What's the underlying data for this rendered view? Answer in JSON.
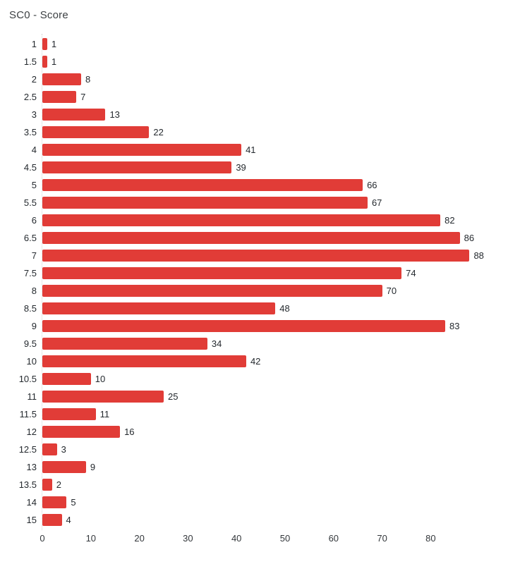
{
  "chart_data": {
    "type": "bar",
    "orientation": "horizontal",
    "title": "SC0 - Score",
    "categories": [
      "1",
      "1.5",
      "2",
      "2.5",
      "3",
      "3.5",
      "4",
      "4.5",
      "5",
      "5.5",
      "6",
      "6.5",
      "7",
      "7.5",
      "8",
      "8.5",
      "9",
      "9.5",
      "10",
      "10.5",
      "11",
      "11.5",
      "12",
      "12.5",
      "13",
      "13.5",
      "14",
      "15"
    ],
    "values": [
      1,
      1,
      8,
      7,
      13,
      22,
      41,
      39,
      66,
      67,
      82,
      86,
      88,
      74,
      70,
      48,
      83,
      34,
      42,
      10,
      25,
      11,
      16,
      3,
      9,
      2,
      5,
      4
    ],
    "x_ticks": [
      0,
      10,
      20,
      30,
      40,
      50,
      60,
      70,
      80
    ],
    "xlim": [
      0,
      88
    ],
    "xlabel": "",
    "ylabel": "",
    "bar_color": "#e13c37",
    "value_labels_shown": true,
    "grid": "zero-line-only",
    "legend": "none"
  }
}
